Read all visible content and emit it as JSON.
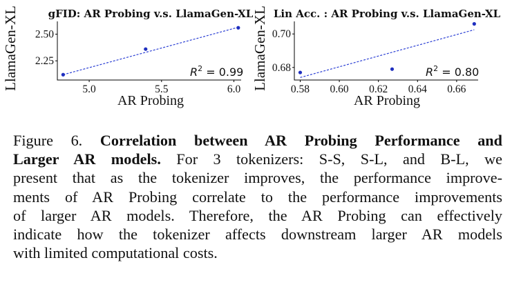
{
  "chart_data": [
    {
      "type": "scatter",
      "title": "gFID: AR Probing v.s. LlamaGen-XL",
      "xlabel": "AR Probing",
      "ylabel": "LlamaGen-XL",
      "x_ticks": [
        5.0,
        5.5,
        6.0
      ],
      "y_ticks": [
        2.25,
        2.5
      ],
      "x_tick_labels": [
        "5.0",
        "5.5",
        "6.0"
      ],
      "y_tick_labels": [
        "2.25",
        "2.50"
      ],
      "xlim": [
        4.78,
        6.05
      ],
      "ylim": [
        2.07,
        2.62
      ],
      "points": [
        {
          "x": 4.82,
          "y": 2.12
        },
        {
          "x": 5.39,
          "y": 2.36
        },
        {
          "x": 6.03,
          "y": 2.56
        }
      ],
      "fit_line": {
        "x": [
          4.82,
          6.03
        ],
        "y": [
          2.12,
          2.565
        ]
      },
      "annotation": "R^2 = 0.99",
      "grid": false
    },
    {
      "type": "scatter",
      "title": "Lin Acc. : AR Probing v.s. LlamaGen-XL",
      "xlabel": "AR Probing",
      "ylabel": "LlamaGen-XL",
      "x_ticks": [
        0.58,
        0.6,
        0.62,
        0.64,
        0.66
      ],
      "y_ticks": [
        0.68,
        0.7
      ],
      "x_tick_labels": [
        "0.58",
        "0.60",
        "0.62",
        "0.64",
        "0.66"
      ],
      "y_tick_labels": [
        "0.68",
        "0.70"
      ],
      "xlim": [
        0.577,
        0.671
      ],
      "ylim": [
        0.6725,
        0.7075
      ],
      "points": [
        {
          "x": 0.58,
          "y": 0.677
        },
        {
          "x": 0.627,
          "y": 0.679
        },
        {
          "x": 0.669,
          "y": 0.706
        }
      ],
      "fit_line": {
        "x": [
          0.58,
          0.669
        ],
        "y": [
          0.674,
          0.7025
        ]
      },
      "annotation": "R^2 = 0.80",
      "grid": false
    }
  ],
  "caption": {
    "lines": [
      [
        {
          "t": "Figure 6.  "
        },
        {
          "t": "Correlation between AR Probing Performance and",
          "b": true
        }
      ],
      [
        {
          "t": "Larger AR models.",
          "b": true
        },
        {
          "t": "  For 3 tokenizers:  S-S, S-L, and B-L, we"
        }
      ],
      [
        {
          "t": "present that as the tokenizer improves, the performance improve-"
        }
      ],
      [
        {
          "t": "ments of AR Probing correlate to the performance improvements"
        }
      ],
      [
        {
          "t": "of larger AR models.  Therefore, the AR Probing can effectively"
        }
      ],
      [
        {
          "t": "indicate how the tokenizer affects downstream larger AR models"
        }
      ],
      [
        {
          "t": "with limited computational costs."
        }
      ]
    ]
  }
}
